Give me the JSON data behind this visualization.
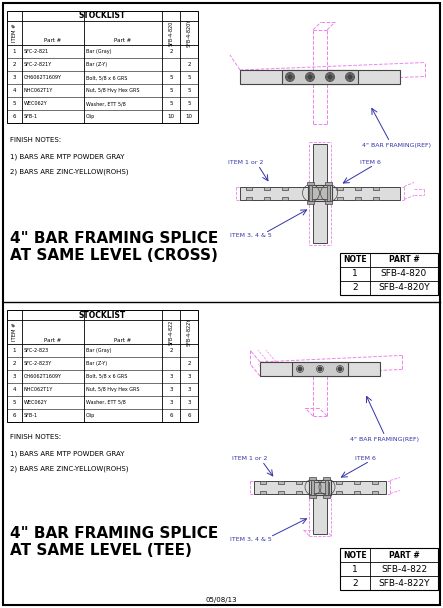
{
  "bg_color": "#ffffff",
  "title1": "4\" BAR FRAMING SPLICE\nAT SAME LEVEL (CROSS)",
  "title2": "4\" BAR FRAMING SPLICE\nAT SAME LEVEL (TEE)",
  "finish_notes_line0": "FINISH NOTES:",
  "finish_notes_line1": "1) BARS ARE MTP POWDER GRAY",
  "finish_notes_line2": "2) BARS ARE ZINC-YELLOW(ROHS)",
  "stocklist_title": "STOCKLIST",
  "section1": {
    "headers_rotated": [
      "SFB-4-820",
      "SFB-4-820Y"
    ],
    "rows": [
      [
        "1",
        "SFC-2-821",
        "Bar (Gray)",
        "2",
        ""
      ],
      [
        "2",
        "SFC-2-821Y",
        "Bar (Z-Y)",
        "",
        "2"
      ],
      [
        "3",
        "CH6062T1609Y",
        "Bolt, 5/8 x 6 GRS",
        "5",
        "5"
      ],
      [
        "4",
        "NHC062T1Y",
        "Nut, 5/8 Hvy Hex GRS",
        "5",
        "5"
      ],
      [
        "5",
        "WEC062Y",
        "Washer, ETT 5/8",
        "5",
        "5"
      ],
      [
        "6",
        "SFB-1",
        "Clip",
        "10",
        "10"
      ]
    ],
    "note_rows": [
      [
        "NOTE",
        "PART #"
      ],
      [
        "1",
        "SFB-4-820"
      ],
      [
        "2",
        "SFB-4-820Y"
      ]
    ]
  },
  "section2": {
    "headers_rotated": [
      "SFB-4-822",
      "SFB-4-822Y"
    ],
    "rows": [
      [
        "1",
        "SFC-2-823",
        "Bar (Gray)",
        "2",
        ""
      ],
      [
        "2",
        "SFC-2-823Y",
        "Bar (Z-Y)",
        "",
        "2"
      ],
      [
        "3",
        "CH6062T1609Y",
        "Bolt, 5/8 x 6 GRS",
        "3",
        "3"
      ],
      [
        "4",
        "NHC062T1Y",
        "Nut, 5/8 Hvy Hex GRS",
        "3",
        "3"
      ],
      [
        "5",
        "WEC062Y",
        "Washer, ETT 5/8",
        "3",
        "3"
      ],
      [
        "6",
        "SFB-1",
        "Clip",
        "6",
        "6"
      ]
    ],
    "note_rows": [
      [
        "NOTE",
        "PART #"
      ],
      [
        "1",
        "SFB-4-822"
      ],
      [
        "2",
        "SFB-4-822Y"
      ]
    ]
  },
  "footer": "05/08/13",
  "pink": "#ee82ee",
  "blue": "#3333aa",
  "dark": "#444444",
  "mid": "#aaaaaa",
  "light": "#dddddd"
}
